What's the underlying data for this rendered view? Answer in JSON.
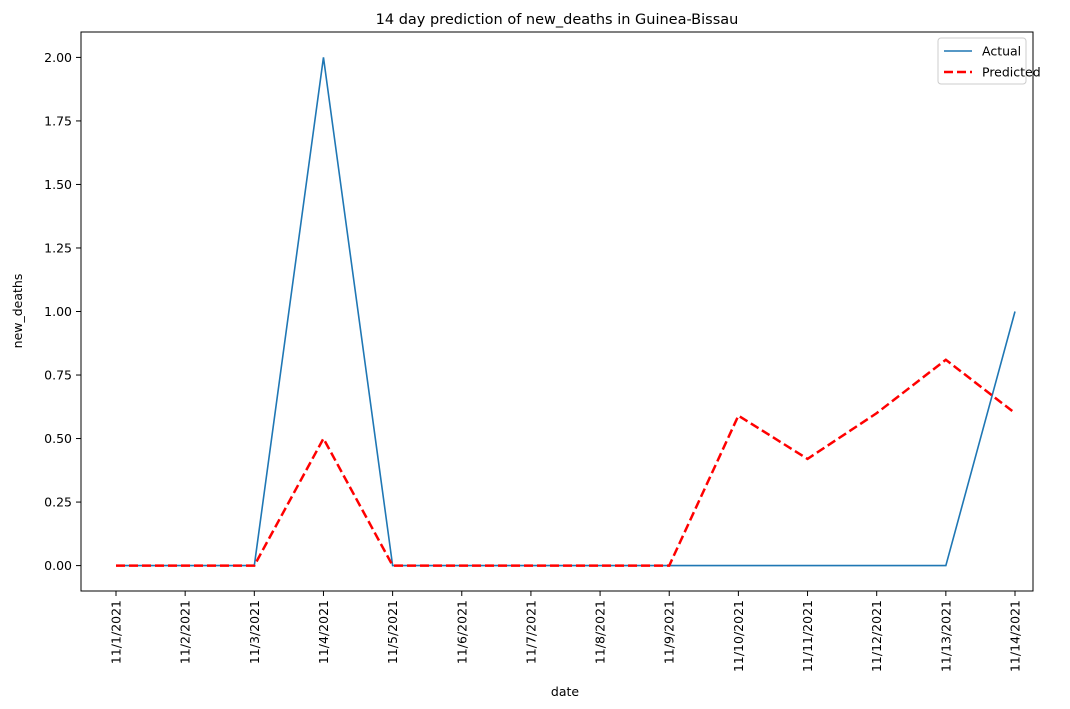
{
  "chart_data": {
    "type": "line",
    "title": "14 day prediction of new_deaths in Guinea-Bissau",
    "xlabel": "date",
    "ylabel": "new_deaths",
    "x": [
      "11/1/2021",
      "11/2/2021",
      "11/3/2021",
      "11/4/2021",
      "11/5/2021",
      "11/6/2021",
      "11/7/2021",
      "11/8/2021",
      "11/9/2021",
      "11/10/2021",
      "11/11/2021",
      "11/12/2021",
      "11/13/2021",
      "11/14/2021"
    ],
    "ylim": [
      -0.1,
      2.1
    ],
    "yticks": [
      "0.00",
      "0.25",
      "0.50",
      "0.75",
      "1.00",
      "1.25",
      "1.50",
      "1.75",
      "2.00"
    ],
    "grid": false,
    "legend_position": "top-right",
    "series": [
      {
        "name": "Actual",
        "color": "#1f77b4",
        "style": "solid",
        "values": [
          0,
          0,
          0,
          2,
          0,
          0,
          0,
          0,
          0,
          0,
          0,
          0,
          0,
          1
        ]
      },
      {
        "name": "Predicted",
        "color": "#ff0000",
        "style": "dashed",
        "values": [
          0,
          0,
          0,
          0.5,
          0,
          0,
          0,
          0,
          0,
          0.59,
          0.42,
          0.6,
          0.81,
          0.6
        ]
      }
    ]
  }
}
